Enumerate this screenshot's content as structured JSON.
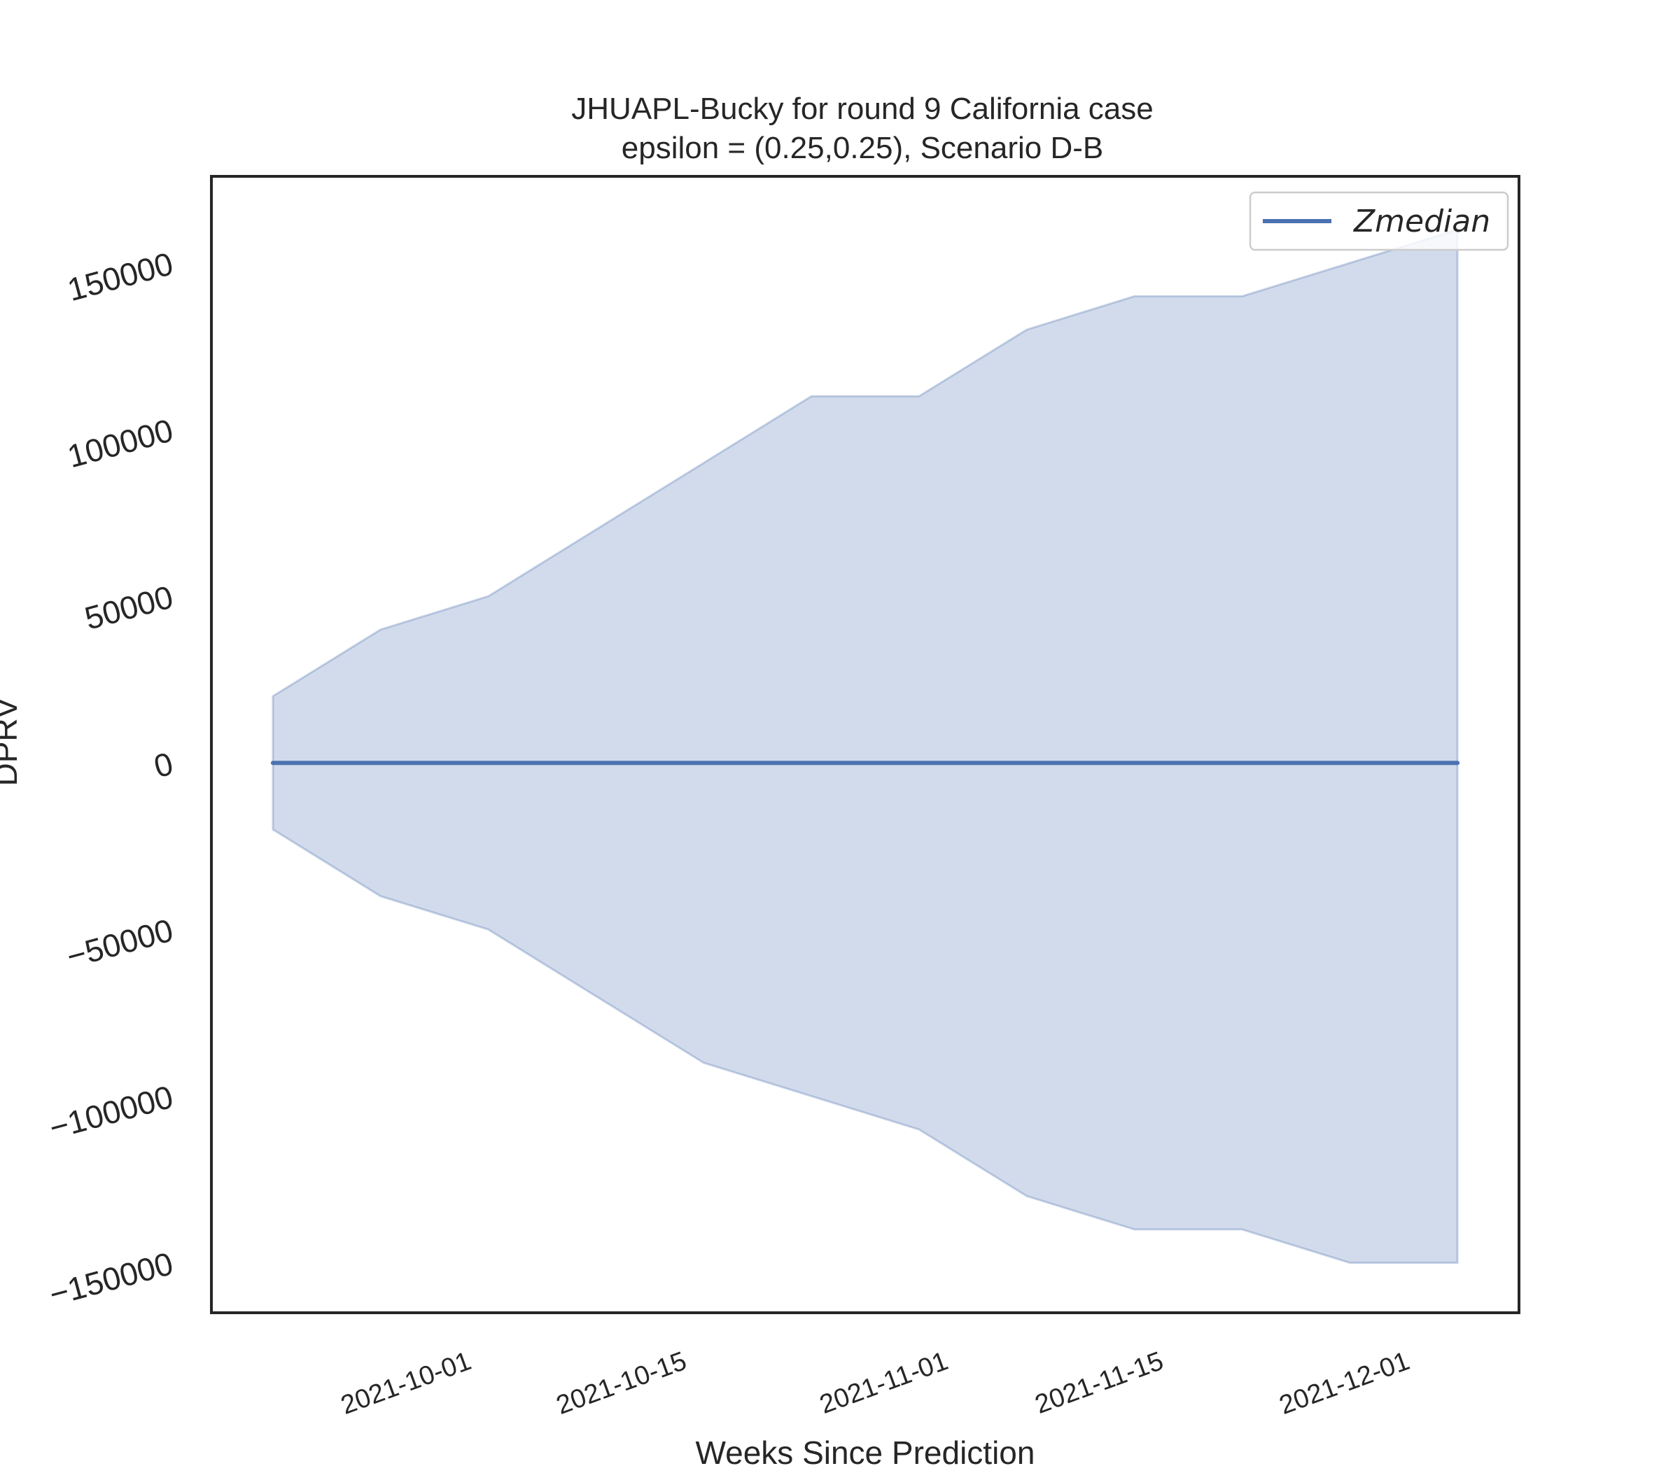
{
  "chart_data": {
    "type": "area",
    "title": "JHUAPL-Bucky for round 9 California  case",
    "subtitle": "epsilon = (0.25,0.25), Scenario D-B",
    "xlabel": "Weeks Since Prediction",
    "ylabel": "DPRV",
    "x": [
      "2021-09-18",
      "2021-09-25",
      "2021-10-02",
      "2021-10-09",
      "2021-10-16",
      "2021-10-23",
      "2021-10-30",
      "2021-11-06",
      "2021-11-13",
      "2021-11-20",
      "2021-11-27",
      "2021-12-04"
    ],
    "series": [
      {
        "name": "Zmedian",
        "color": "#4c72b0",
        "values": [
          0,
          0,
          0,
          0,
          0,
          0,
          0,
          0,
          0,
          0,
          0,
          0
        ]
      }
    ],
    "band": {
      "color": "#4c72b0",
      "upper": [
        20000,
        40000,
        50000,
        70000,
        90000,
        110000,
        110000,
        130000,
        140000,
        140000,
        150000,
        160000
      ],
      "lower": [
        -20000,
        -40000,
        -50000,
        -70000,
        -90000,
        -100000,
        -110000,
        -130000,
        -140000,
        -140000,
        -150000,
        -150000
      ]
    },
    "xlim": [
      "2021-09-14",
      "2021-12-08"
    ],
    "ylim": [
      -165000,
      176000
    ],
    "yticks": [
      -150000,
      -100000,
      -50000,
      0,
      50000,
      100000,
      150000
    ],
    "yticklabels": [
      "−150000",
      "−100000",
      "−50000",
      "0",
      "50000",
      "100000",
      "150000"
    ],
    "xticks": [
      "2021-10-01",
      "2021-10-15",
      "2021-11-01",
      "2021-11-15",
      "2021-12-01"
    ],
    "grid": false,
    "legend": "top-right"
  }
}
